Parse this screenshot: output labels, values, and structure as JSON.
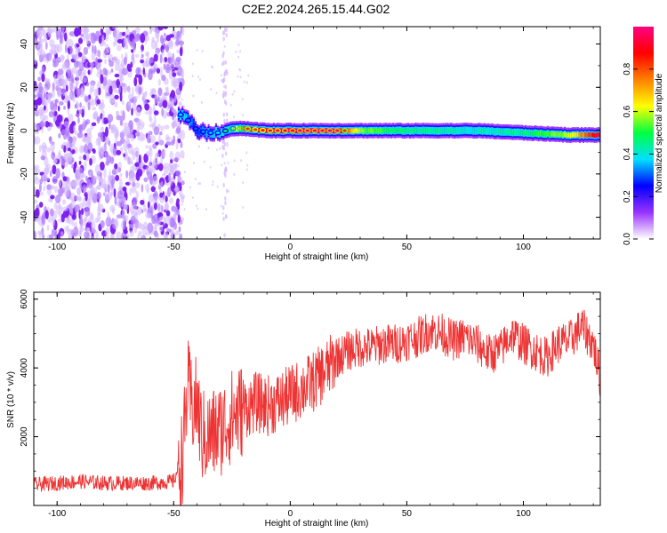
{
  "figure": {
    "title": "C2E2.2024.265.15.44.G02"
  },
  "chart_data": [
    {
      "type": "heatmap",
      "title": "",
      "xlabel": "Height of straight line (km)",
      "ylabel": "Frequency (Hz)",
      "xlim": [
        -110,
        133
      ],
      "ylim": [
        -50,
        48
      ],
      "x_ticks": [
        -100,
        -50,
        0,
        50,
        100
      ],
      "y_ticks": [
        -40,
        -20,
        0,
        20,
        40
      ],
      "ridge": {
        "description_values_height_km": [
          -48,
          -45,
          -42,
          -40,
          -35,
          -30,
          -25,
          -20,
          -10,
          0,
          10,
          20,
          30,
          50,
          80,
          100,
          120,
          133
        ],
        "frequency_hz": [
          8,
          6,
          3,
          0,
          -1,
          -1,
          1,
          1,
          0,
          0,
          0,
          0,
          0,
          0,
          0,
          -1,
          -2,
          -2
        ],
        "amplitude": [
          0.4,
          0.35,
          0.3,
          0.3,
          0.35,
          0.4,
          0.55,
          0.8,
          0.9,
          0.95,
          0.95,
          0.95,
          0.55,
          0.45,
          0.4,
          0.45,
          0.6,
          0.95
        ]
      },
      "noise_region_height_km": [
        -110,
        -48
      ],
      "colorbar": {
        "label": "Normalized spectral amplitude",
        "ticks": [
          0.0,
          0.2,
          0.4,
          0.6,
          0.8
        ],
        "range": [
          0,
          1
        ],
        "colors": [
          "#ffffff",
          "#9932ff",
          "#0000ff",
          "#00e0ff",
          "#00ff40",
          "#ffff00",
          "#ff8000",
          "#ff0000",
          "#ff0080"
        ]
      }
    },
    {
      "type": "line",
      "title": "",
      "xlabel": "Height of straight line (km)",
      "ylabel": "SNR (10 * v/v)",
      "xlim": [
        -110,
        133
      ],
      "ylim": [
        0,
        6200
      ],
      "x_ticks": [
        -100,
        -50,
        0,
        50,
        100
      ],
      "y_ticks": [
        2000,
        4000,
        6000
      ],
      "color": "#ee3333",
      "series": [
        {
          "x": [
            -110,
            -100,
            -90,
            -80,
            -70,
            -60,
            -50,
            -46,
            -44,
            -42,
            -40,
            -38,
            -35,
            -30,
            -25,
            -20,
            -15,
            -10,
            -5,
            0,
            5,
            10,
            15,
            20,
            25,
            30,
            35,
            40,
            45,
            50,
            55,
            60,
            65,
            70,
            75,
            80,
            85,
            90,
            95,
            100,
            105,
            110,
            115,
            120,
            125,
            130,
            133
          ],
          "y": [
            600,
            650,
            700,
            650,
            650,
            650,
            700,
            1500,
            3500,
            2800,
            3000,
            2000,
            2000,
            2200,
            2600,
            2800,
            3000,
            2900,
            3000,
            3200,
            3400,
            3600,
            3900,
            4300,
            4500,
            4600,
            4600,
            4700,
            4700,
            4800,
            4900,
            5100,
            5000,
            4800,
            4900,
            4700,
            4400,
            4500,
            5000,
            4700,
            4500,
            4300,
            4700,
            4800,
            5200,
            4700,
            3700
          ]
        }
      ]
    }
  ]
}
